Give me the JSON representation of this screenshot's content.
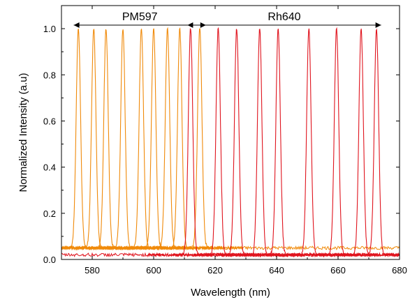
{
  "chart_data": {
    "type": "line",
    "xlabel": "Wavelength (nm)",
    "ylabel": "Normalized Intensity (a.u)",
    "xlim": [
      570,
      680
    ],
    "ylim": [
      0.0,
      1.1
    ],
    "x_ticks": [
      "580",
      "600",
      "620",
      "640",
      "660",
      "680"
    ],
    "y_ticks": [
      "0.0",
      "0.2",
      "0.4",
      "0.6",
      "0.8",
      "1.0"
    ],
    "grid": false,
    "annotations": [
      {
        "text": "PM597",
        "range": [
          574,
          617
        ]
      },
      {
        "text": "Rh640",
        "range": [
          611,
          674
        ]
      }
    ],
    "groups": [
      {
        "label": "PM597",
        "color": "#f08a0a",
        "baseline": 0.05,
        "peaks": [
          575.5,
          580.5,
          584.5,
          590.0,
          596.0,
          600.0,
          604.5,
          608.5,
          615.0
        ]
      },
      {
        "label": "Rh640",
        "color": "#e0141e",
        "baseline": 0.02,
        "peaks": [
          612.0,
          621.0,
          627.0,
          634.5,
          640.5,
          650.5,
          659.5,
          667.5,
          672.5
        ]
      }
    ],
    "peak_value": 1.0,
    "peak_fwhm_nm": 1.7
  }
}
